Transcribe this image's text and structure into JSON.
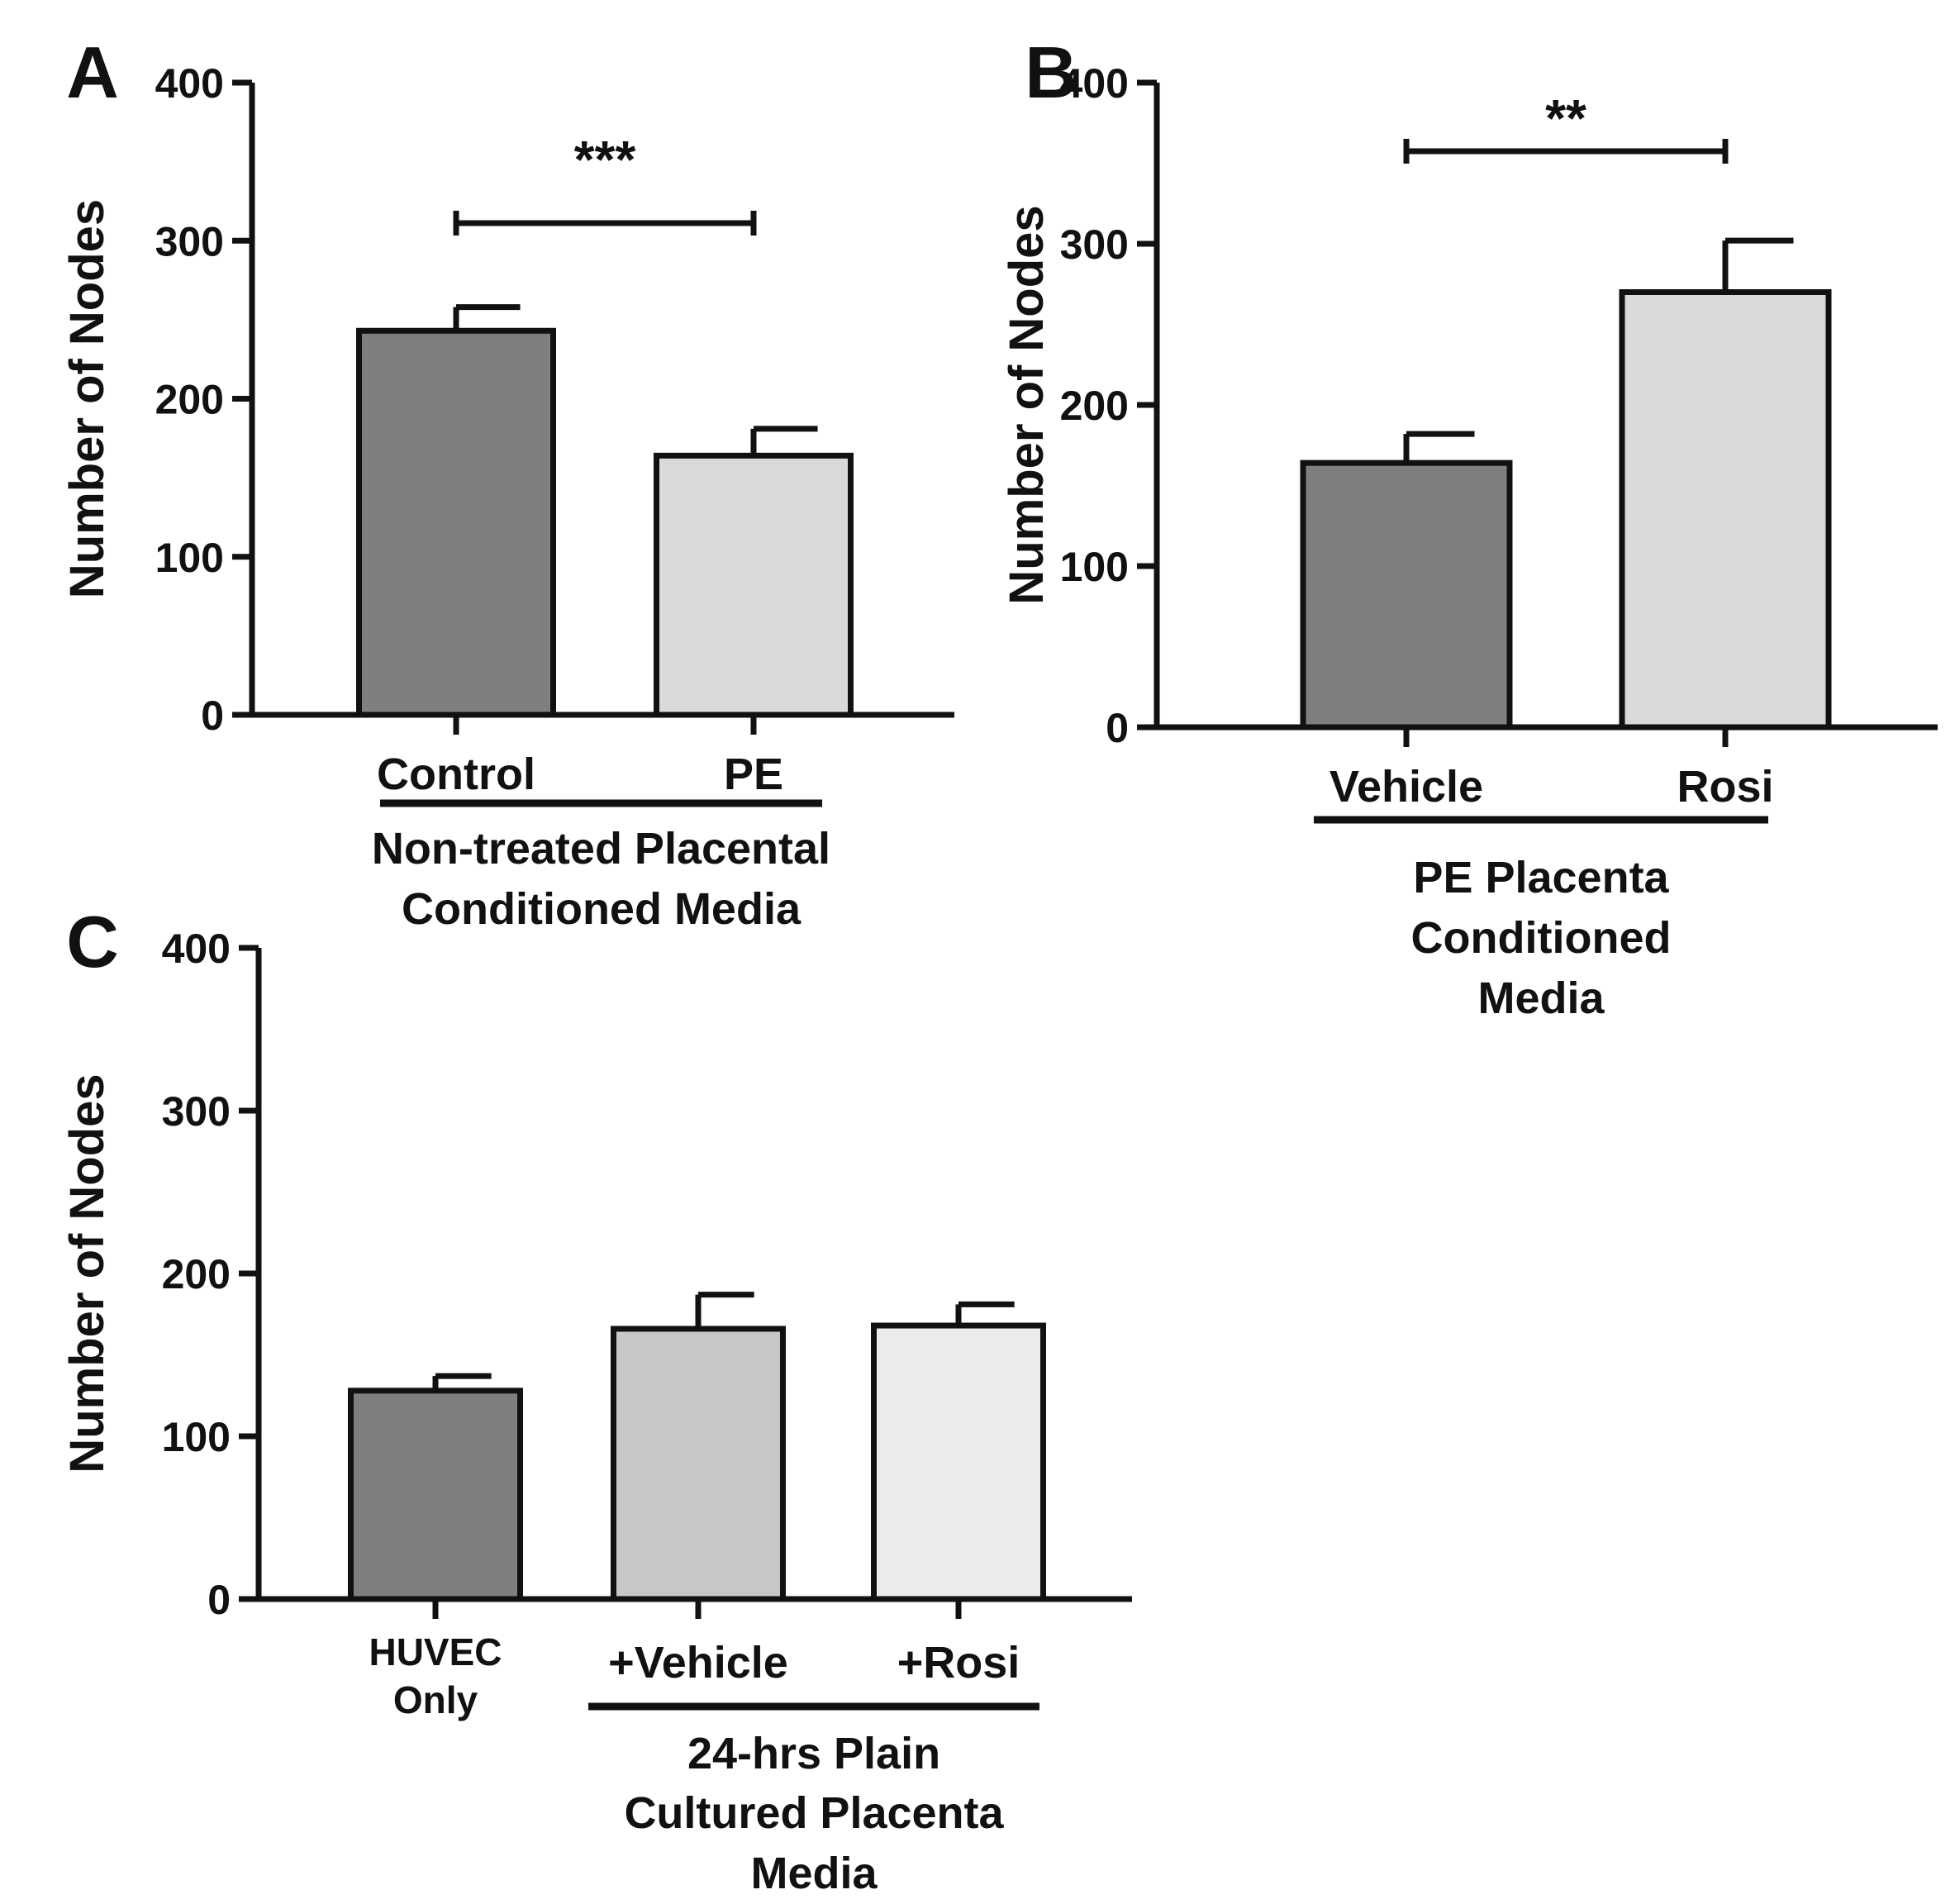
{
  "chart_data": [
    {
      "id": "A",
      "type": "bar",
      "panel_label": "A",
      "ylabel": "Number of Nodes",
      "ylim": [
        0,
        400
      ],
      "yticks": [
        "0",
        "100",
        "200",
        "300",
        "400"
      ],
      "categories": [
        "Control",
        "PE"
      ],
      "values": [
        243,
        164
      ],
      "errors": [
        15,
        17
      ],
      "colors": [
        "#7f7f7f",
        "#d9d9d9"
      ],
      "group_label_lines": [
        "Non-treated Placental",
        "Conditioned Media"
      ],
      "significance": {
        "text": "***",
        "from": 0,
        "to": 1
      }
    },
    {
      "id": "B",
      "type": "bar",
      "panel_label": "B",
      "ylabel": "Number of Nodes",
      "ylim": [
        0,
        400
      ],
      "yticks": [
        "0",
        "100",
        "200",
        "300",
        "400"
      ],
      "categories": [
        "Vehicle",
        "Rosi"
      ],
      "values": [
        164,
        270
      ],
      "errors": [
        18,
        32
      ],
      "colors": [
        "#7f7f7f",
        "#d9d9d9"
      ],
      "group_label_lines": [
        "PE Placenta",
        "Conditioned",
        "Media"
      ],
      "significance": {
        "text": "**",
        "from": 0,
        "to": 1
      }
    },
    {
      "id": "C",
      "type": "bar",
      "panel_label": "C",
      "ylabel": "Number of Nodes",
      "ylim": [
        0,
        400
      ],
      "yticks": [
        "0",
        "100",
        "200",
        "300",
        "400"
      ],
      "categories": [
        "HUVEC Only",
        "+Vehicle",
        "+Rosi"
      ],
      "category_lines": [
        [
          "HUVEC",
          "Only"
        ],
        [
          "+Vehicle"
        ],
        [
          "+Rosi"
        ]
      ],
      "values": [
        128,
        166,
        168
      ],
      "errors": [
        9,
        21,
        13
      ],
      "colors": [
        "#7f7f7f",
        "#c7c7c7",
        "#ececec"
      ],
      "group_label_lines": [
        "24-hrs Plain",
        "Cultured Placenta",
        "Media"
      ],
      "group_span": [
        1,
        2
      ]
    }
  ]
}
